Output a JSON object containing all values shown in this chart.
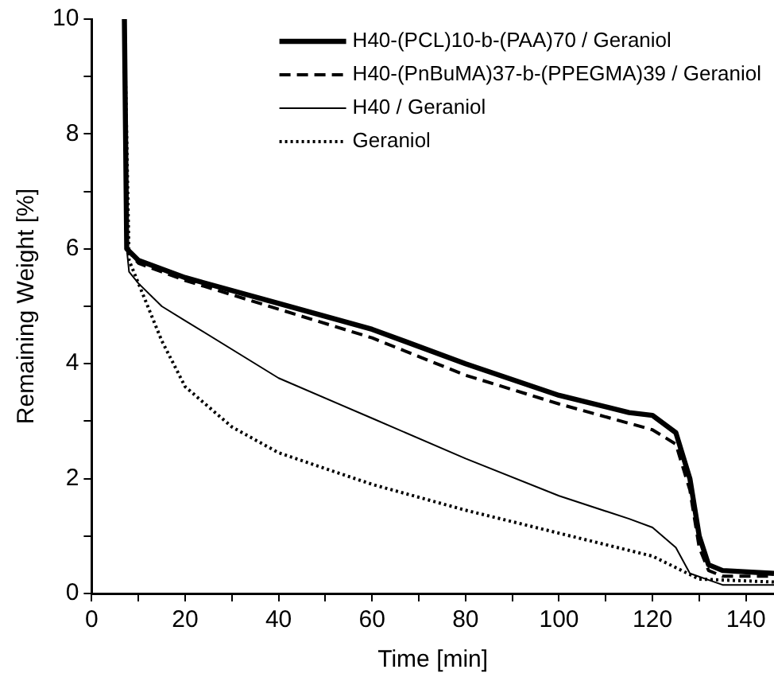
{
  "chart_data": {
    "type": "line",
    "xlabel": "Time [min]",
    "ylabel": "Remaining Weight [%]",
    "xlim": [
      0,
      146
    ],
    "ylim": [
      0,
      10
    ],
    "xticks": [
      0,
      {
        "value": 10,
        "label": null
      },
      20,
      {
        "value": 30,
        "label": null
      },
      40,
      {
        "value": 50,
        "label": null
      },
      60,
      {
        "value": 70,
        "label": null
      },
      80,
      {
        "value": 90,
        "label": null
      },
      100,
      {
        "value": 110,
        "label": null
      },
      120,
      {
        "value": 130,
        "label": null
      },
      140
    ],
    "yticks": [
      0,
      {
        "value": 1,
        "label": null
      },
      2,
      {
        "value": 3,
        "label": null
      },
      4,
      {
        "value": 5,
        "label": null
      },
      6,
      {
        "value": 7,
        "label": null
      },
      8,
      {
        "value": 9,
        "label": null
      },
      10
    ],
    "grid": false,
    "legend": "top right",
    "marker": "none",
    "series": [
      {
        "name": "H40-(PCL)10-b-(PAA)70 / Geraniol",
        "color": "#000000",
        "line_style": "solid",
        "x": [
          7,
          7.5,
          10,
          20,
          40,
          60,
          80,
          100,
          115,
          120,
          125,
          128,
          130,
          132,
          135,
          146
        ],
        "values": [
          10,
          6,
          5.8,
          5.5,
          5.05,
          4.6,
          4.0,
          3.45,
          3.15,
          3.1,
          2.8,
          2.0,
          1.0,
          0.5,
          0.4,
          0.35
        ]
      },
      {
        "name": "H40-(PnBuMA)37-b-(PPEGMA)39 / Geraniol",
        "color": "#000000",
        "line_style": "dashed",
        "x": [
          7,
          7.5,
          10,
          20,
          40,
          60,
          80,
          100,
          120,
          125,
          128,
          130,
          132,
          135,
          146
        ],
        "values": [
          10,
          6,
          5.75,
          5.45,
          4.95,
          4.45,
          3.8,
          3.3,
          2.85,
          2.6,
          1.8,
          0.8,
          0.4,
          0.3,
          0.3
        ]
      },
      {
        "name": "H40 / Geraniol",
        "color": "#000000",
        "line_style": "solid",
        "x": [
          7,
          7.5,
          8,
          10,
          15,
          20,
          40,
          60,
          80,
          100,
          115,
          120,
          125,
          128,
          135,
          146
        ],
        "values": [
          10,
          6,
          5.6,
          5.4,
          5.0,
          4.75,
          3.75,
          3.05,
          2.35,
          1.7,
          1.3,
          1.15,
          0.8,
          0.35,
          0.15,
          0.15
        ]
      },
      {
        "name": "Geraniol",
        "color": "#000000",
        "line_style": "dotted",
        "x": [
          7,
          8,
          12,
          15,
          20,
          30,
          40,
          60,
          80,
          100,
          120,
          125,
          130,
          146
        ],
        "values": [
          10,
          5.8,
          5.0,
          4.4,
          3.6,
          2.9,
          2.45,
          1.9,
          1.45,
          1.05,
          0.65,
          0.45,
          0.25,
          0.2
        ]
      }
    ]
  }
}
